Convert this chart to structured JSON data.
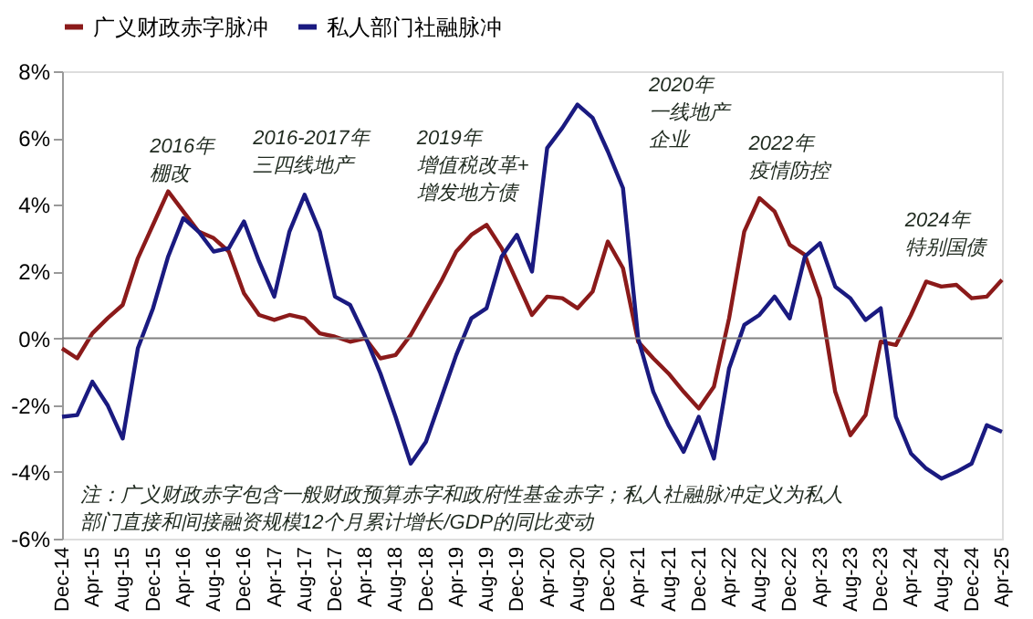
{
  "chart_data": {
    "type": "line",
    "categories": [
      "Dec-14",
      null,
      "Apr-15",
      null,
      "Aug-15",
      null,
      "Dec-15",
      null,
      "Apr-16",
      null,
      "Aug-16",
      null,
      "Dec-16",
      null,
      "Apr-17",
      null,
      "Aug-17",
      null,
      "Dec-17",
      null,
      "Apr-18",
      null,
      "Aug-18",
      null,
      "Dec-18",
      null,
      "Apr-19",
      null,
      "Aug-19",
      null,
      "Dec-19",
      null,
      "Apr-20",
      null,
      "Aug-20",
      null,
      "Dec-20",
      null,
      "Apr-21",
      null,
      "Aug-21",
      null,
      "Dec-21",
      null,
      "Apr-22",
      null,
      "Aug-22",
      null,
      "Dec-22",
      null,
      "Apr-23",
      null,
      "Aug-23",
      null,
      "Dec-23",
      null,
      "Apr-24",
      null,
      "Aug-24",
      null,
      "Dec-24",
      null,
      "Apr-25"
    ],
    "series": [
      {
        "name": "广义财政赤字脉冲",
        "color": "#8b1a1a",
        "values": [
          -0.3,
          -0.6,
          0.15,
          0.6,
          1.0,
          2.4,
          3.4,
          4.4,
          3.8,
          3.2,
          3.0,
          2.6,
          1.35,
          0.7,
          0.55,
          0.7,
          0.6,
          0.15,
          0.05,
          -0.1,
          0.0,
          -0.6,
          -0.5,
          0.1,
          0.9,
          1.7,
          2.6,
          3.1,
          3.4,
          2.7,
          1.7,
          0.7,
          1.25,
          1.2,
          0.9,
          1.4,
          2.9,
          2.1,
          -0.1,
          -0.6,
          -1.05,
          -1.6,
          -2.1,
          -1.45,
          0.6,
          3.2,
          4.2,
          3.8,
          2.8,
          2.5,
          1.2,
          -1.6,
          -2.9,
          -2.3,
          -0.1,
          -0.2,
          0.7,
          1.7,
          1.55,
          1.6,
          1.2,
          1.25,
          1.75
        ]
      },
      {
        "name": "私人部门社融脉冲",
        "color": "#1a1a80",
        "values": [
          -2.35,
          -2.3,
          -1.3,
          -2.0,
          -3.0,
          -0.3,
          0.9,
          2.45,
          3.6,
          3.2,
          2.6,
          2.7,
          3.5,
          2.3,
          1.25,
          3.2,
          4.3,
          3.2,
          1.25,
          1.0,
          0.05,
          -1.05,
          -2.35,
          -3.75,
          -3.1,
          -1.8,
          -0.5,
          0.6,
          0.9,
          2.45,
          3.1,
          2.0,
          5.7,
          6.3,
          7.0,
          6.6,
          5.6,
          4.5,
          0.0,
          -1.6,
          -2.6,
          -3.4,
          -2.35,
          -3.6,
          -0.9,
          0.4,
          0.7,
          1.25,
          0.6,
          2.45,
          2.85,
          1.55,
          1.2,
          0.55,
          0.9,
          -2.35,
          -3.45,
          -3.9,
          -4.2,
          -4.0,
          -3.75,
          -2.6,
          -2.8
        ]
      }
    ],
    "ylim": [
      -6,
      8
    ],
    "yticks": [
      {
        "value": -6,
        "label": "-6%"
      },
      {
        "value": -4,
        "label": "-4%"
      },
      {
        "value": -2,
        "label": "-2%"
      },
      {
        "value": 0,
        "label": "0%"
      },
      {
        "value": 2,
        "label": "2%"
      },
      {
        "value": 4,
        "label": "4%"
      },
      {
        "value": 6,
        "label": "6%"
      },
      {
        "value": 8,
        "label": "8%"
      }
    ],
    "ref_lines": [
      {
        "axis": "y",
        "value": 0,
        "color": "#808080"
      }
    ],
    "legend": "top",
    "grid": false,
    "marker": "none",
    "line_style": "solid",
    "annotations": [
      "2016年棚改",
      "2016-2017年三四线地产",
      "2019年增值税改革+增发地方债",
      "2020年一线地产企业",
      "2022年疫情防控",
      "2024年特别国债",
      "注：广义财政赤字包含一般财政预算赤字和政府性基金赤字；私人社融脉冲定义为私人部门直接和间接融资规模12个月累计增长/GDP的同比变动"
    ]
  }
}
